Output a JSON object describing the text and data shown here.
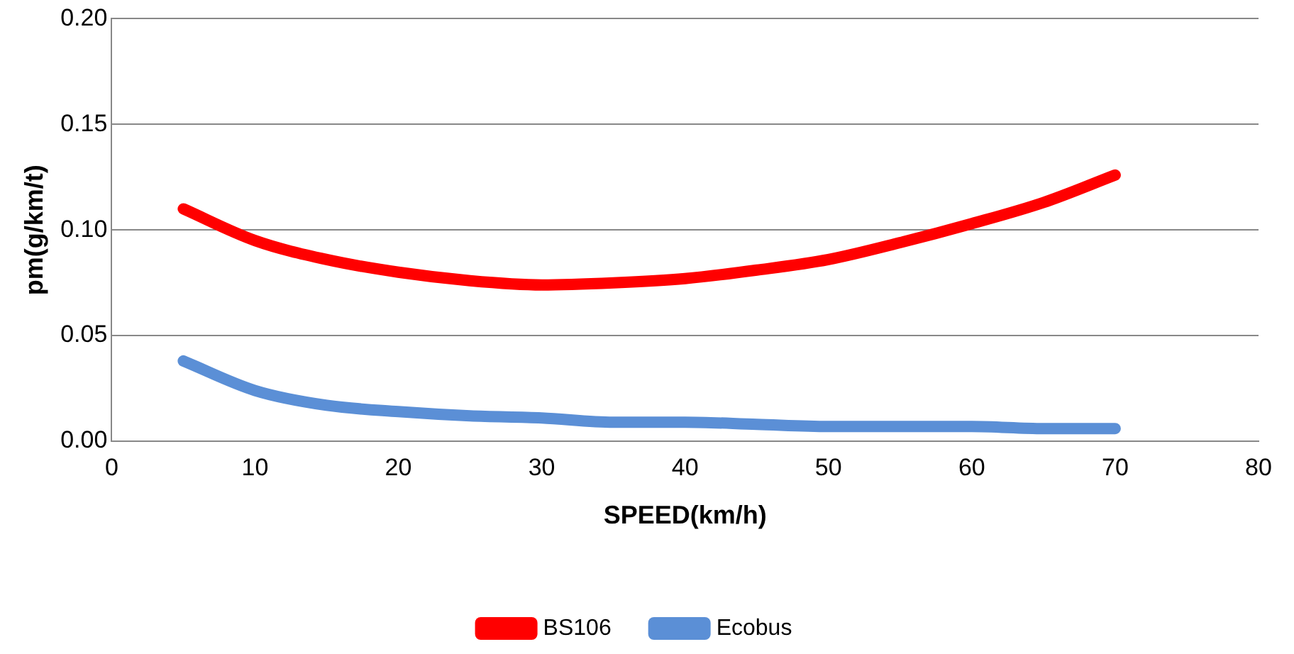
{
  "chart_data": {
    "type": "line",
    "xlabel": "SPEED(km/h)",
    "ylabel": "pm(g/km/t)",
    "x": [
      5,
      10,
      15,
      20,
      25,
      30,
      35,
      40,
      45,
      50,
      55,
      60,
      65,
      70
    ],
    "series": [
      {
        "name": "BS106",
        "color": "#ff0000",
        "values": [
          0.11,
          0.095,
          0.086,
          0.08,
          0.076,
          0.074,
          0.075,
          0.077,
          0.081,
          0.086,
          0.094,
          0.103,
          0.113,
          0.126
        ]
      },
      {
        "name": "Ecobus",
        "color": "#5b8fd6",
        "values": [
          0.038,
          0.024,
          0.017,
          0.014,
          0.012,
          0.011,
          0.009,
          0.009,
          0.008,
          0.007,
          0.007,
          0.007,
          0.006,
          0.006
        ]
      }
    ],
    "xlim": [
      0,
      80
    ],
    "xticks": [
      0,
      10,
      20,
      30,
      40,
      50,
      60,
      70,
      80
    ],
    "ylim": [
      0,
      0.2
    ],
    "yticks": [
      {
        "value": 0,
        "label": "0.00"
      },
      {
        "value": 0.05,
        "label": "0.05"
      },
      {
        "value": 0.1,
        "label": "0.10"
      },
      {
        "value": 0.15,
        "label": "0.15"
      },
      {
        "value": 0.2,
        "label": "0.20"
      }
    ],
    "grid": "y",
    "legend": "bottom",
    "marker": "none",
    "line_style": "solid"
  }
}
